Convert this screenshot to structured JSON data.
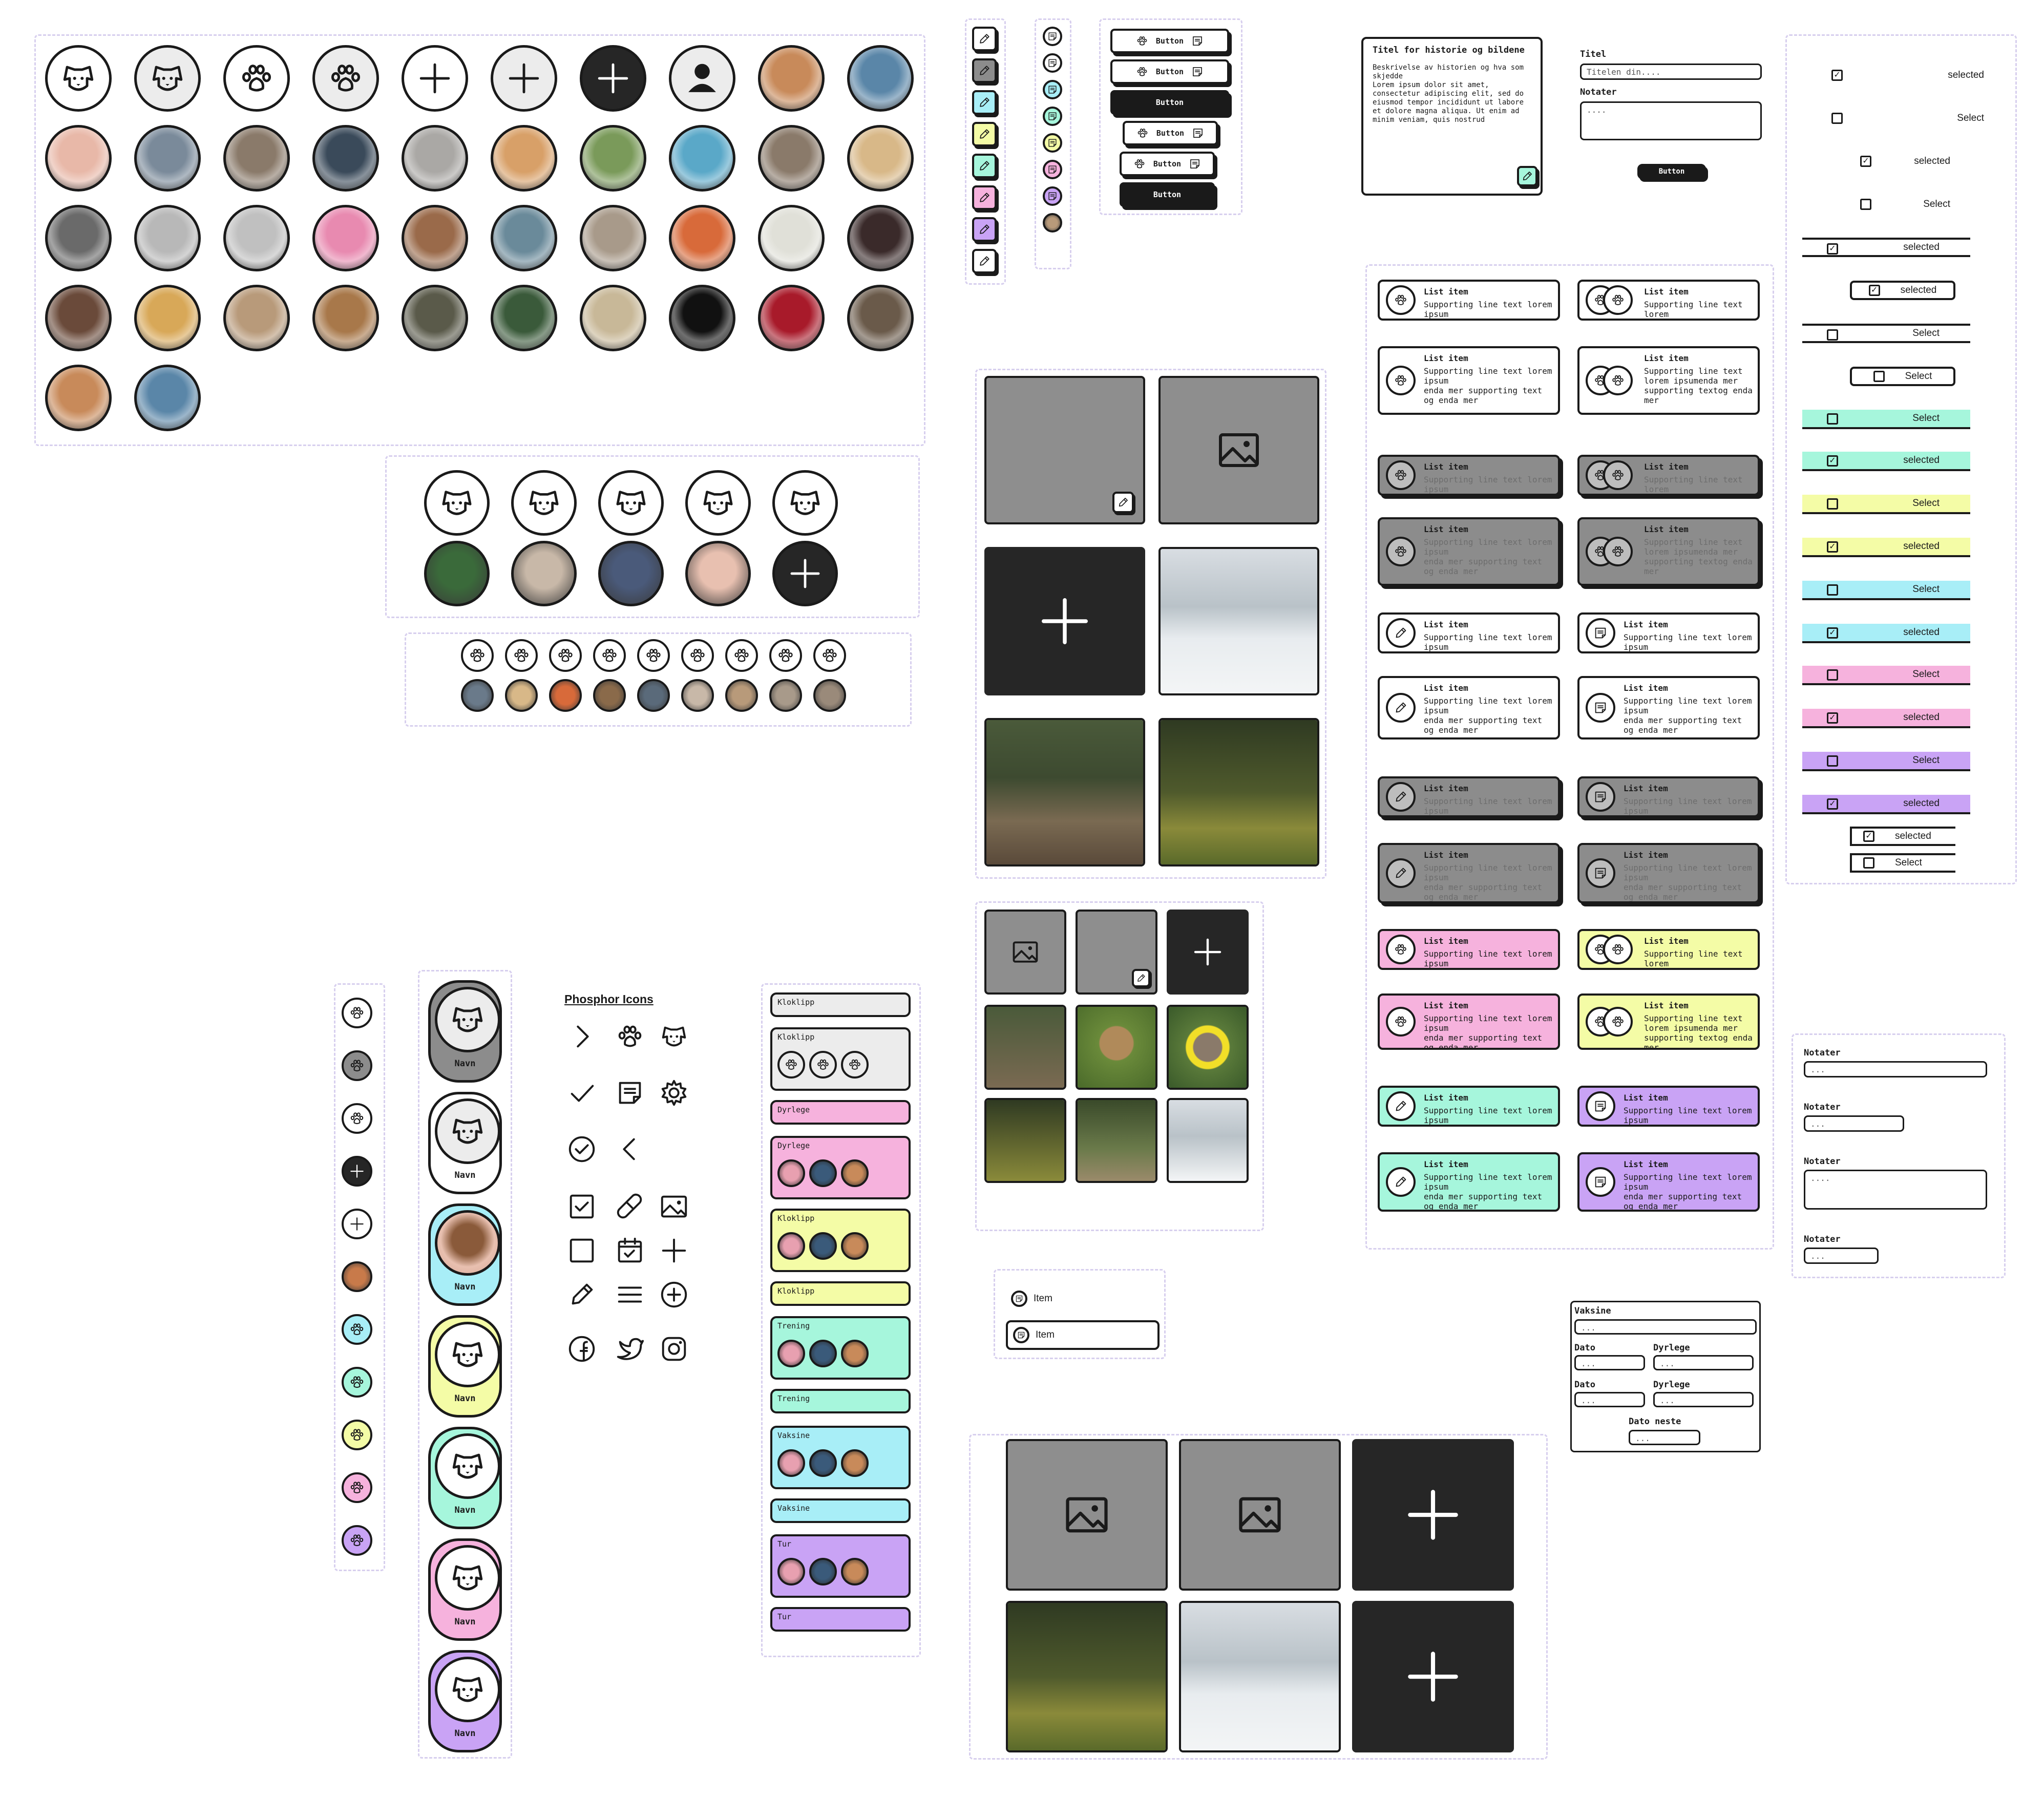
{
  "photo_grid": {
    "names": [
      "dog-photo",
      "dog-photo",
      "dog-photo",
      "dog-photo",
      "cat-photo",
      "dog-photo",
      "dog-photo",
      "dog-photo",
      "dog-photo",
      "cat-photo",
      "cat-photo",
      "dog-photo",
      "cat-photo",
      "dog-photo",
      "rat-photo",
      "dog-photo",
      "dog-photo",
      "dog-photo",
      "cat-photo",
      "dog-photo",
      "cat-photo",
      "lizard-photo",
      "mouse-photo",
      "snake-photo",
      "snake-photo",
      "dog-photo",
      "spider-photo",
      "mouse-photo",
      "hamster-photo",
      "fish-photo",
      "person-photo",
      "person-photo"
    ]
  },
  "buttons": {
    "label": "Button"
  },
  "card": {
    "title": "Titel for historie og bildene",
    "body": "Beskrivelse av historien og hva som skjedde\nLorem ipsum dolor sit amet, consectetur adipiscing elit, sed do eiusmod tempor incididunt ut labore et dolore magna aliqua. Ut enim ad minim veniam, quis nostrud"
  },
  "form": {
    "title_label": "Titel",
    "title_placeholder": "Titelen din....",
    "notes_label": "Notater",
    "notes_placeholder": "....",
    "submit": "Button"
  },
  "list": {
    "title": "List item",
    "short": "Supporting line text lorem ipsum",
    "long": "Supporting line text lorem ipsum\nenda mer supporting text og enda mer",
    "short2": "Supporting line text lorem",
    "long2": "Supporting line text lorem ipsumenda mer supporting textog enda mer"
  },
  "select": {
    "selected": "selected",
    "select": "Select"
  },
  "phosphor": {
    "title": "Phosphor Icons"
  },
  "pets": {
    "name": "Navn"
  },
  "tags": {
    "kloklipp": "Kloklipp",
    "dyrlege": "Dyrlege",
    "trening": "Trening",
    "vaksine": "Vaksine",
    "tur": "Tur"
  },
  "items": {
    "label": "Item"
  },
  "notes": {
    "label": "Notater",
    "placeholder": "...",
    "placeholder2": "...."
  },
  "vaccine": {
    "title": "Vaksine",
    "dato": "Dato",
    "dyrlege": "Dyrlege",
    "dato_neste": "Dato neste",
    "placeholder": "..."
  },
  "colors": {
    "mint": "#a6f6dc",
    "pink": "#f6b2dd",
    "yellow": "#f4fca6",
    "cyan": "#a8eef7",
    "purple": "#c9a3f5",
    "grey": "#8c8c8c",
    "dark": "#262626"
  }
}
